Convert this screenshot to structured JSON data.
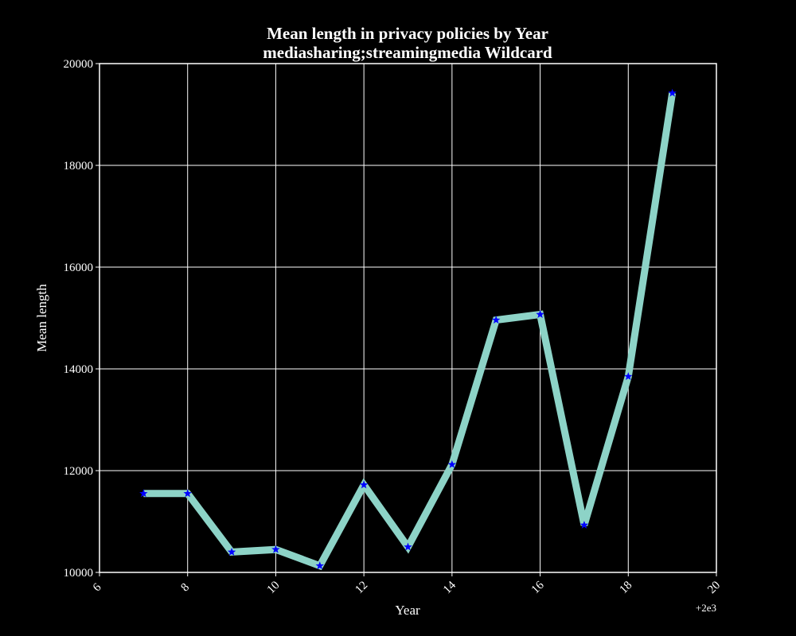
{
  "chart_data": {
    "type": "line",
    "title": "Mean length in privacy policies by Year",
    "subtitle": "mediasharing;streamingmedia Wildcard",
    "xlabel": "Year",
    "ylabel": "Mean length",
    "x_offset_label": "+2e3",
    "xlim": [
      6,
      20
    ],
    "ylim": [
      10000,
      20000
    ],
    "x_ticks": [
      6,
      8,
      10,
      12,
      14,
      16,
      18,
      20
    ],
    "y_ticks": [
      10000,
      12000,
      14000,
      16000,
      18000,
      20000
    ],
    "grid": true,
    "background": "#000000",
    "grid_color": "#ffffff",
    "series": [
      {
        "line_color": "#8dd3c7",
        "marker_color": "#0000ff",
        "marker": "star",
        "x": [
          7,
          8,
          9,
          10,
          11,
          12,
          13,
          14,
          15,
          16,
          17,
          18,
          19
        ],
        "y": [
          11550,
          11550,
          10400,
          10450,
          10130,
          11720,
          10500,
          12120,
          14960,
          15070,
          10930,
          13850,
          19420
        ]
      }
    ]
  }
}
